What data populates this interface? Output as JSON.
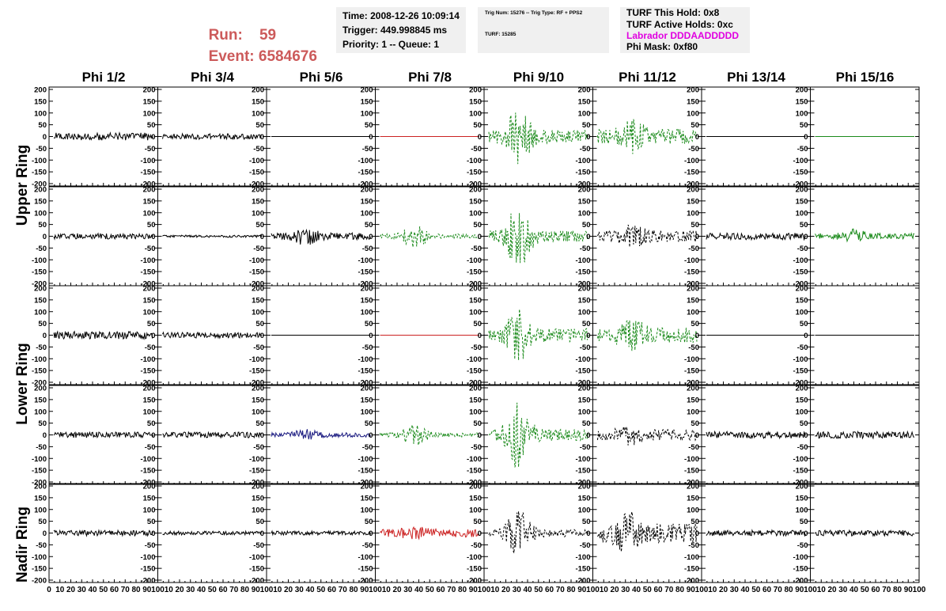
{
  "header": {
    "run_label": "Run:",
    "run_value": "59",
    "event_label": "Event:",
    "event_value": "6584676"
  },
  "time_box": {
    "time": "Time: 2008-12-26 10:09:14",
    "trigger": "Trigger: 449.998845 ms",
    "priority": "Priority: 1 -- Queue: 1"
  },
  "trig_box": {
    "trig_line": "Trig Num: 15276 -- Trig Type: RF + PPS2",
    "turf_line": "TURF: 15285"
  },
  "turf_box": {
    "this_hold": "TURF This Hold: 0x8",
    "active_holds": "TURF Active Holds: 0xc",
    "labrador": "Labrador DDDAADDDDD",
    "phi_mask": "Phi Mask: 0xf80"
  },
  "colors": {
    "run_event": "#cc5a5a",
    "labrador": "#e000e0",
    "black_trace": "#000000",
    "green_trace": "#1a8a1a",
    "red_trace": "#cc2222",
    "blue_trace": "#1a1a80"
  },
  "columns": [
    "Phi 1/2",
    "Phi 3/4",
    "Phi 5/6",
    "Phi 7/8",
    "Phi 9/10",
    "Phi 11/12",
    "Phi 13/14",
    "Phi 15/16"
  ],
  "ring_labels": [
    {
      "label": "Upper Ring",
      "rows": [
        0,
        1
      ]
    },
    {
      "label": "Lower Ring",
      "rows": [
        2,
        3
      ]
    },
    {
      "label": "Nadir Ring",
      "rows": [
        4
      ]
    }
  ],
  "chart_data": {
    "type": "line",
    "ylim": [
      -200,
      200
    ],
    "xlim": [
      0,
      100
    ],
    "y_ticks": [
      -200,
      -150,
      -100,
      -50,
      0,
      50,
      100,
      150,
      200
    ],
    "x_ticks": [
      0,
      10,
      20,
      30,
      40,
      50,
      60,
      70,
      80,
      90,
      100
    ],
    "panels": [
      [
        {
          "style": "black-solid",
          "amp": 20,
          "burst": 0
        },
        {
          "style": "black-solid",
          "amp": 15,
          "burst": 0
        },
        {
          "style": "black-flat",
          "amp": 0,
          "burst": 0
        },
        {
          "style": "red-flat",
          "amp": 0,
          "burst": 0
        },
        {
          "style": "green-dashed",
          "amp": 35,
          "burst": 120,
          "burst_center": 30
        },
        {
          "style": "green-dashed",
          "amp": 40,
          "burst": 60,
          "burst_center": 35
        },
        {
          "style": "black-flat",
          "amp": 0,
          "burst": 0
        },
        {
          "style": "green-flat",
          "amp": 0,
          "burst": 0
        }
      ],
      [
        {
          "style": "black-solid",
          "amp": 15,
          "burst": 0
        },
        {
          "style": "black-solid",
          "amp": 6,
          "burst": 0
        },
        {
          "style": "black-solid",
          "amp": 18,
          "burst": 35,
          "burst_center": 35
        },
        {
          "style": "green-dashed",
          "amp": 12,
          "burst": 55,
          "burst_center": 35
        },
        {
          "style": "green-dashed",
          "amp": 30,
          "burst": 160,
          "burst_center": 30
        },
        {
          "style": "black-dashed",
          "amp": 30,
          "burst": 40,
          "burst_center": 35
        },
        {
          "style": "black-solid",
          "amp": 18,
          "burst": 0
        },
        {
          "style": "green-solid",
          "amp": 15,
          "burst": 25,
          "burst_center": 40
        }
      ],
      [
        {
          "style": "black-solid",
          "amp": 20,
          "burst": 0
        },
        {
          "style": "black-solid",
          "amp": 15,
          "burst": 0
        },
        {
          "style": "black-flat",
          "amp": 0,
          "burst": 0
        },
        {
          "style": "red-flat",
          "amp": 0,
          "burst": 0
        },
        {
          "style": "green-dashed",
          "amp": 35,
          "burst": 110,
          "burst_center": 30
        },
        {
          "style": "green-dashed",
          "amp": 40,
          "burst": 65,
          "burst_center": 35
        },
        {
          "style": "black-flat",
          "amp": 0,
          "burst": 0
        },
        {
          "style": "black-flat",
          "amp": 0,
          "burst": 0
        }
      ],
      [
        {
          "style": "black-solid",
          "amp": 15,
          "burst": 0
        },
        {
          "style": "black-solid",
          "amp": 15,
          "burst": 0
        },
        {
          "style": "blue-solid",
          "amp": 12,
          "burst": 20,
          "burst_center": 35
        },
        {
          "style": "green-dashed",
          "amp": 12,
          "burst": 55,
          "burst_center": 35
        },
        {
          "style": "green-dashed",
          "amp": 30,
          "burst": 160,
          "burst_center": 30
        },
        {
          "style": "black-dashed",
          "amp": 28,
          "burst": 35,
          "burst_center": 35
        },
        {
          "style": "black-solid",
          "amp": 18,
          "burst": 0
        },
        {
          "style": "black-solid",
          "amp": 18,
          "burst": 0
        }
      ],
      [
        {
          "style": "black-solid",
          "amp": 15,
          "burst": 0
        },
        {
          "style": "black-solid",
          "amp": 10,
          "burst": 0
        },
        {
          "style": "black-solid",
          "amp": 10,
          "burst": 0
        },
        {
          "style": "red-solid",
          "amp": 22,
          "burst": 15,
          "burst_center": 35
        },
        {
          "style": "black-dashed",
          "amp": 20,
          "burst": 110,
          "burst_center": 30
        },
        {
          "style": "black-dashed",
          "amp": 50,
          "burst": 80,
          "burst_center": 30
        },
        {
          "style": "black-solid",
          "amp": 15,
          "burst": 0
        },
        {
          "style": "black-solid",
          "amp": 15,
          "burst": 0
        }
      ]
    ]
  }
}
